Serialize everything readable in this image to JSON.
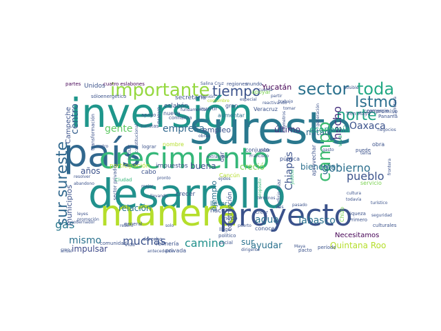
{
  "wordcloud": {
    "words": [
      {
        "text": "inversión",
        "color": "#1f968b"
      },
      {
        "text": "país",
        "color": "#31688e"
      },
      {
        "text": "sureste",
        "color": "#2a788e"
      },
      {
        "text": "desarrollo",
        "color": "#21918c"
      },
      {
        "text": "crecimiento",
        "color": "#35b779"
      },
      {
        "text": "manera",
        "color": "#b5de2b"
      },
      {
        "text": "proyecto",
        "color": "#3b528b"
      },
      {
        "text": "importante",
        "color": "#95d840"
      },
      {
        "text": "sector",
        "color": "#2c728e"
      },
      {
        "text": "toda",
        "color": "#22a884"
      },
      {
        "text": "Istmo",
        "color": "#2d708e"
      },
      {
        "text": "norte",
        "color": "#20a386"
      },
      {
        "text": "tiempo",
        "color": "#3b528b"
      },
      {
        "text": "sur sureste",
        "color": "#31688e"
      },
      {
        "text": "campo",
        "color": "#3fbc73"
      },
      {
        "text": "hecho",
        "color": "#46307e"
      },
      {
        "text": "centro",
        "color": "#355f8d"
      },
      {
        "text": "empresa",
        "color": "#31688e"
      },
      {
        "text": "gente",
        "color": "#5ec962"
      },
      {
        "text": "Oaxaca",
        "color": "#3b528b"
      },
      {
        "text": "gobierno",
        "color": "#2d708e"
      },
      {
        "text": "pueblo",
        "color": "#3b528b"
      },
      {
        "text": "agua",
        "color": "#2c728e"
      },
      {
        "text": "Tabasco",
        "color": "#2c728e"
      },
      {
        "text": "gas",
        "color": "#2a788e"
      },
      {
        "text": "mismo",
        "color": "#2c728e"
      },
      {
        "text": "camino",
        "color": "#21918c"
      },
      {
        "text": "muchas",
        "color": "#3b528b"
      },
      {
        "text": "ayudar",
        "color": "#2c728e"
      },
      {
        "text": "Quintana Roo",
        "color": "#b5de2b"
      },
      {
        "text": "Necesitamos",
        "color": "#440154"
      },
      {
        "text": "Chiapas",
        "color": "#3b528b"
      },
      {
        "text": "mitad",
        "color": "#31688e"
      },
      {
        "text": "último",
        "color": "#46307e"
      },
      {
        "text": "economía",
        "color": "#22a884"
      },
      {
        "text": "años",
        "color": "#3b528b"
      },
      {
        "text": "impulsar",
        "color": "#3e4989"
      },
      {
        "text": "buena",
        "color": "#3b528b"
      },
      {
        "text": "creció",
        "color": "#7ad151"
      },
      {
        "text": "bienestar",
        "color": "#2d708e"
      },
      {
        "text": "Yucatán",
        "color": "#440154"
      },
      {
        "text": "sur",
        "color": "#2c728e"
      },
      {
        "text": "relación",
        "color": "#2a788e"
      },
      {
        "text": "ejemplo",
        "color": "#2c728e"
      },
      {
        "text": "empleo",
        "color": "#3b528b"
      },
      {
        "text": "municipios",
        "color": "#3b528b"
      },
      {
        "text": "Campeche",
        "color": "#3b528b"
      },
      {
        "text": "Unidos",
        "color": "#3b528b"
      },
      {
        "text": "partes",
        "color": "#440154"
      },
      {
        "text": "cuatro eslabones",
        "color": "#440154"
      },
      {
        "text": "eslabón",
        "color": "#3b528b"
      },
      {
        "text": "secretaría",
        "color": "#3b528b"
      },
      {
        "text": "nuevo",
        "color": "#3b528b"
      },
      {
        "text": "participación",
        "color": "#b5de2b"
      },
      {
        "text": "impuestos",
        "color": "#3b528b"
      },
      {
        "text": "construcción",
        "color": "#3b528b"
      },
      {
        "text": "crecer",
        "color": "#3b528b"
      },
      {
        "text": "llevar",
        "color": "#2c728e"
      },
      {
        "text": "hacen",
        "color": "#3b528b"
      },
      {
        "text": "conocer",
        "color": "#3b528b"
      },
      {
        "text": "refinería",
        "color": "#3b528b"
      },
      {
        "text": "privada",
        "color": "#3b528b"
      },
      {
        "text": "dar",
        "color": "#3b528b"
      },
      {
        "text": "cabo",
        "color": "#3b528b"
      },
      {
        "text": "nombre",
        "color": "#b5de2b"
      },
      {
        "text": "aprovechar",
        "color": "#3b528b"
      },
      {
        "text": "obra",
        "color": "#3b528b"
      },
      {
        "text": "servicio",
        "color": "#7ad151"
      },
      {
        "text": "nueva",
        "color": "#3b528b"
      },
      {
        "text": "Chizo",
        "color": "#7ad151"
      },
      {
        "text": "viva",
        "color": "#35b779"
      },
      {
        "text": "compromiso",
        "color": "#3b528b"
      },
      {
        "text": "apoyar",
        "color": "#7ad151"
      },
      {
        "text": "aumentar",
        "color": "#2c728e"
      },
      {
        "text": "gran",
        "color": "#3b528b"
      },
      {
        "text": "modo",
        "color": "#3b528b"
      },
      {
        "text": "pública",
        "color": "#3b528b"
      },
      {
        "text": "conjunto",
        "color": "#3b528b"
      },
      {
        "text": "Veracruz",
        "color": "#3b528b"
      },
      {
        "text": "Cancún",
        "color": "#b5de2b"
      },
      {
        "text": "mundo",
        "color": "#3b528b"
      },
      {
        "text": "regiones",
        "color": "#3b528b"
      },
      {
        "text": "invertir",
        "color": "#3b528b"
      },
      {
        "text": "apoyo",
        "color": "#3b528b"
      },
      {
        "text": "confianza",
        "color": "#3b528b"
      },
      {
        "text": "turistas",
        "color": "#3b528b"
      },
      {
        "text": "incluir",
        "color": "#3b528b"
      },
      {
        "text": "lograr",
        "color": "#3b528b"
      },
      {
        "text": "puede",
        "color": "#3b528b"
      },
      {
        "text": "llega",
        "color": "#3b528b"
      },
      {
        "text": "político",
        "color": "#3b528b"
      },
      {
        "text": "social",
        "color": "#3b528b"
      },
      {
        "text": "general",
        "color": "#3b528b"
      },
      {
        "text": "comunidad",
        "color": "#3b528b"
      },
      {
        "text": "vida",
        "color": "#3b528b"
      },
      {
        "text": "derecho",
        "color": "#3b528b"
      },
      {
        "text": "leyes",
        "color": "#3b528b"
      },
      {
        "text": "gobernador",
        "color": "#3b528b"
      },
      {
        "text": "promoción",
        "color": "#3b528b"
      },
      {
        "text": "transformación",
        "color": "#3b528b"
      },
      {
        "text": "sólo",
        "color": "#3b528b"
      },
      {
        "text": "energético",
        "color": "#3b528b"
      },
      {
        "text": "Panamá",
        "color": "#3b528b"
      },
      {
        "text": "comercio",
        "color": "#3b528b"
      },
      {
        "text": "Tren Maya",
        "color": "#3b528b"
      },
      {
        "text": "período",
        "color": "#3b528b"
      },
      {
        "text": "pacto",
        "color": "#3b528b"
      },
      {
        "text": "riqueza",
        "color": "#3b528b"
      },
      {
        "text": "Primero",
        "color": "#3b528b"
      },
      {
        "text": "culturales",
        "color": "#3b528b"
      },
      {
        "text": "justicia",
        "color": "#35b779"
      },
      {
        "text": "Francisco",
        "color": "#3b528b"
      },
      {
        "text": "pedir",
        "color": "#3b528b"
      },
      {
        "text": "sector privado",
        "color": "#3b528b"
      },
      {
        "text": "crear",
        "color": "#3b528b"
      },
      {
        "text": "fundamental",
        "color": "#3b528b"
      },
      {
        "text": "especial",
        "color": "#3b528b"
      },
      {
        "text": "reunión",
        "color": "#3b528b"
      },
      {
        "text": "tomar",
        "color": "#3b528b"
      },
      {
        "text": "cuatro",
        "color": "#3b528b"
      },
      {
        "text": "Ciudad",
        "color": "#35b779"
      },
      {
        "text": "llevando",
        "color": "#3b528b"
      },
      {
        "text": "pronto",
        "color": "#3b528b"
      },
      {
        "text": "mejor",
        "color": "#3b528b"
      },
      {
        "text": "posible",
        "color": "#3b528b"
      },
      {
        "text": "resolver",
        "color": "#3b528b"
      },
      {
        "text": "abandono",
        "color": "#3b528b"
      },
      {
        "text": "Porfirio Díaz",
        "color": "#3b528b"
      },
      {
        "text": "cultura",
        "color": "#3b528b"
      },
      {
        "text": "todavía",
        "color": "#3b528b"
      },
      {
        "text": "propósito",
        "color": "#35b779"
      },
      {
        "text": "extranjera",
        "color": "#3b528b"
      },
      {
        "text": "ejidos",
        "color": "#3b528b"
      },
      {
        "text": "términos",
        "color": "#3b528b"
      },
      {
        "text": "seis",
        "color": "#3b528b"
      },
      {
        "text": "Maya",
        "color": "#3b528b"
      },
      {
        "text": "cuenta",
        "color": "#3b528b"
      },
      {
        "text": "partir",
        "color": "#3b528b"
      },
      {
        "text": "trabajo",
        "color": "#3b528b"
      },
      {
        "text": "costumbre",
        "color": "#b5de2b"
      },
      {
        "text": "Salina Cruz",
        "color": "#3b528b"
      },
      {
        "text": "reactivando",
        "color": "#3b528b"
      },
      {
        "text": "constitucional",
        "color": "#3b528b"
      },
      {
        "text": "refiero",
        "color": "#3b528b"
      },
      {
        "text": "solo",
        "color": "#3b528b"
      },
      {
        "text": "creo",
        "color": "#3b528b"
      },
      {
        "text": "anual",
        "color": "#3b528b"
      },
      {
        "text": "dirigente",
        "color": "#3b528b"
      },
      {
        "text": "antecedente",
        "color": "#3b528b"
      },
      {
        "text": "generación",
        "color": "#3b528b"
      },
      {
        "text": "kilómetros",
        "color": "#3b528b"
      },
      {
        "text": "pasado",
        "color": "#3b528b"
      },
      {
        "text": "puerto",
        "color": "#3b528b"
      },
      {
        "text": "negocios",
        "color": "#3b528b"
      },
      {
        "text": "carretera",
        "color": "#3b528b"
      },
      {
        "text": "frontera",
        "color": "#3b528b"
      },
      {
        "text": "turístico",
        "color": "#3b528b"
      },
      {
        "text": "seguridad",
        "color": "#3b528b"
      },
      {
        "text": "tema",
        "color": "#3b528b"
      },
      {
        "text": "obras",
        "color": "#3b528b"
      },
      {
        "text": "gasto",
        "color": "#3b528b"
      }
    ]
  }
}
